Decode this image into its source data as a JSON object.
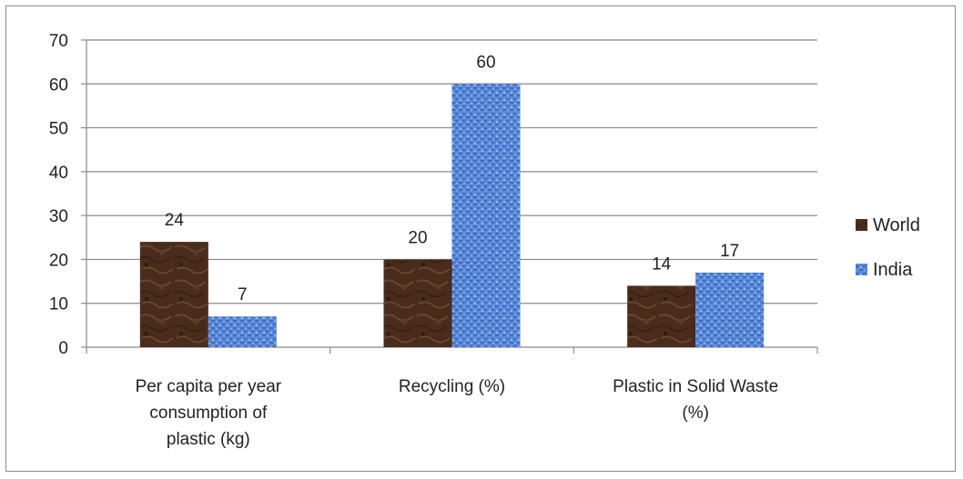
{
  "chart_data": {
    "type": "bar",
    "categories": [
      [
        "Per capita per year",
        "consumption of",
        "plastic (kg)"
      ],
      [
        "Recycling (%)"
      ],
      [
        "Plastic in Solid Waste",
        "(%)"
      ]
    ],
    "series": [
      {
        "name": "World",
        "values": [
          24,
          20,
          14
        ],
        "color": "#4a2c1c"
      },
      {
        "name": "India",
        "values": [
          7,
          60,
          17
        ],
        "color": "#4f7fd0"
      }
    ],
    "ylim": [
      0,
      70
    ],
    "yticks": [
      0,
      10,
      20,
      30,
      40,
      50,
      60,
      70
    ],
    "grid": true,
    "legend": "right",
    "title": "",
    "xlabel": "",
    "ylabel": ""
  }
}
